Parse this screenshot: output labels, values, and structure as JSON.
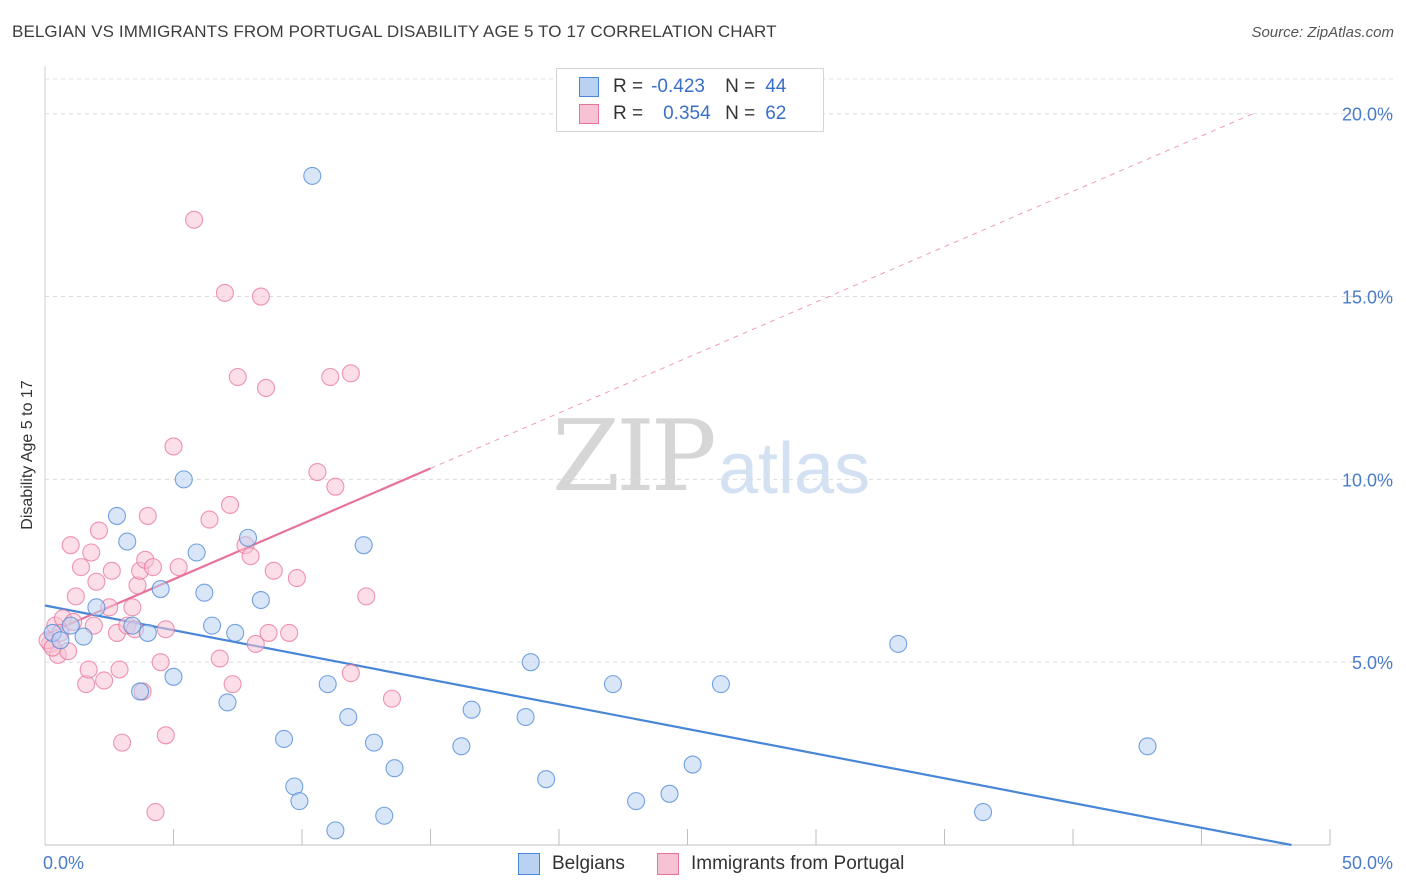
{
  "title": "BELGIAN VS IMMIGRANTS FROM PORTUGAL DISABILITY AGE 5 TO 17 CORRELATION CHART",
  "source": "Source: ZipAtlas.com",
  "watermark": {
    "zip": "ZIP",
    "atlas": "atlas"
  },
  "legend": {
    "r_label": "R =",
    "n_label": "N =",
    "series": [
      {
        "name": "Belgians",
        "r": "-0.423",
        "n": "44"
      },
      {
        "name": "Immigrants from Portugal",
        "r": "0.354",
        "n": "62"
      }
    ]
  },
  "colors": {
    "belgians": "#4a86d6",
    "belgians_fill": "#b9d2f2",
    "portugal": "#e8739a",
    "portugal_fill": "#f7c3d4"
  },
  "chart_data": {
    "type": "scatter",
    "xlabel": "",
    "ylabel": "Disability Age 5 to 17",
    "xlim": [
      0,
      50
    ],
    "ylim": [
      0,
      20
    ],
    "x_tick_labels": [
      "0.0%",
      "50.0%"
    ],
    "y_ticks": [
      5,
      10,
      15,
      20
    ],
    "y_tick_labels": [
      "5.0%",
      "10.0%",
      "15.0%",
      "20.0%"
    ],
    "grid": true,
    "series": [
      {
        "name": "Belgians",
        "points": [
          [
            0.3,
            5.8
          ],
          [
            0.6,
            5.6
          ],
          [
            1.0,
            6.0
          ],
          [
            1.5,
            5.7
          ],
          [
            2.0,
            6.5
          ],
          [
            2.8,
            9.0
          ],
          [
            3.2,
            8.3
          ],
          [
            3.4,
            6.0
          ],
          [
            3.7,
            4.2
          ],
          [
            4.0,
            5.8
          ],
          [
            4.5,
            7.0
          ],
          [
            5.0,
            4.6
          ],
          [
            5.4,
            10.0
          ],
          [
            5.9,
            8.0
          ],
          [
            6.2,
            6.9
          ],
          [
            6.5,
            6.0
          ],
          [
            7.1,
            3.9
          ],
          [
            7.4,
            5.8
          ],
          [
            7.9,
            8.4
          ],
          [
            8.4,
            6.7
          ],
          [
            9.3,
            2.9
          ],
          [
            9.7,
            1.6
          ],
          [
            9.9,
            1.2
          ],
          [
            10.4,
            18.3
          ],
          [
            11.0,
            4.4
          ],
          [
            11.3,
            0.4
          ],
          [
            11.8,
            3.5
          ],
          [
            12.4,
            8.2
          ],
          [
            12.8,
            2.8
          ],
          [
            13.2,
            0.8
          ],
          [
            13.6,
            2.1
          ],
          [
            16.2,
            2.7
          ],
          [
            16.6,
            3.7
          ],
          [
            18.7,
            3.5
          ],
          [
            18.9,
            5.0
          ],
          [
            19.5,
            1.8
          ],
          [
            22.1,
            4.4
          ],
          [
            23.0,
            1.2
          ],
          [
            24.3,
            1.4
          ],
          [
            25.2,
            2.2
          ],
          [
            26.3,
            4.4
          ],
          [
            33.2,
            5.5
          ],
          [
            36.5,
            0.9
          ],
          [
            42.9,
            2.7
          ]
        ]
      },
      {
        "name": "Immigrants from Portugal",
        "points": [
          [
            0.2,
            5.5
          ],
          [
            0.4,
            6.0
          ],
          [
            0.5,
            5.2
          ],
          [
            0.7,
            6.2
          ],
          [
            0.9,
            5.3
          ],
          [
            1.0,
            8.2
          ],
          [
            1.2,
            6.8
          ],
          [
            1.4,
            7.6
          ],
          [
            1.6,
            4.4
          ],
          [
            1.7,
            4.8
          ],
          [
            1.8,
            8.0
          ],
          [
            1.9,
            6.0
          ],
          [
            2.0,
            7.2
          ],
          [
            2.1,
            8.6
          ],
          [
            2.3,
            4.5
          ],
          [
            2.5,
            6.5
          ],
          [
            2.6,
            7.5
          ],
          [
            2.8,
            5.8
          ],
          [
            2.9,
            4.8
          ],
          [
            3.0,
            2.8
          ],
          [
            3.2,
            6.0
          ],
          [
            3.4,
            6.5
          ],
          [
            3.5,
            5.9
          ],
          [
            3.6,
            7.1
          ],
          [
            3.7,
            7.5
          ],
          [
            3.8,
            4.2
          ],
          [
            3.9,
            7.8
          ],
          [
            4.0,
            9.0
          ],
          [
            4.2,
            7.6
          ],
          [
            4.3,
            0.9
          ],
          [
            4.5,
            5.0
          ],
          [
            4.7,
            5.9
          ],
          [
            4.7,
            3.0
          ],
          [
            5.0,
            10.9
          ],
          [
            5.2,
            7.6
          ],
          [
            5.8,
            17.1
          ],
          [
            6.4,
            8.9
          ],
          [
            6.8,
            5.1
          ],
          [
            7.0,
            15.1
          ],
          [
            7.2,
            9.3
          ],
          [
            7.3,
            4.4
          ],
          [
            7.5,
            12.8
          ],
          [
            7.8,
            8.2
          ],
          [
            8.0,
            7.9
          ],
          [
            8.2,
            5.5
          ],
          [
            8.4,
            15.0
          ],
          [
            8.6,
            12.5
          ],
          [
            8.7,
            5.8
          ],
          [
            8.9,
            7.5
          ],
          [
            9.5,
            5.8
          ],
          [
            9.8,
            7.3
          ],
          [
            10.6,
            10.2
          ],
          [
            11.1,
            12.8
          ],
          [
            11.3,
            9.8
          ],
          [
            11.9,
            4.7
          ],
          [
            11.9,
            12.9
          ],
          [
            12.5,
            6.8
          ],
          [
            13.5,
            4.0
          ],
          [
            0.1,
            5.6
          ],
          [
            0.3,
            5.4
          ],
          [
            0.6,
            5.8
          ],
          [
            1.1,
            6.1
          ]
        ]
      }
    ],
    "trend_lines": [
      {
        "series": "Belgians",
        "x": [
          0,
          48.5
        ],
        "y": [
          6.55,
          0.0
        ],
        "style": "solid"
      },
      {
        "series": "Immigrants from Portugal",
        "x": [
          0,
          15
        ],
        "y": [
          5.75,
          10.3
        ],
        "style": "solid"
      },
      {
        "series": "Immigrants from Portugal",
        "x": [
          15,
          47
        ],
        "y": [
          10.3,
          20.0
        ],
        "style": "dashed"
      }
    ]
  }
}
